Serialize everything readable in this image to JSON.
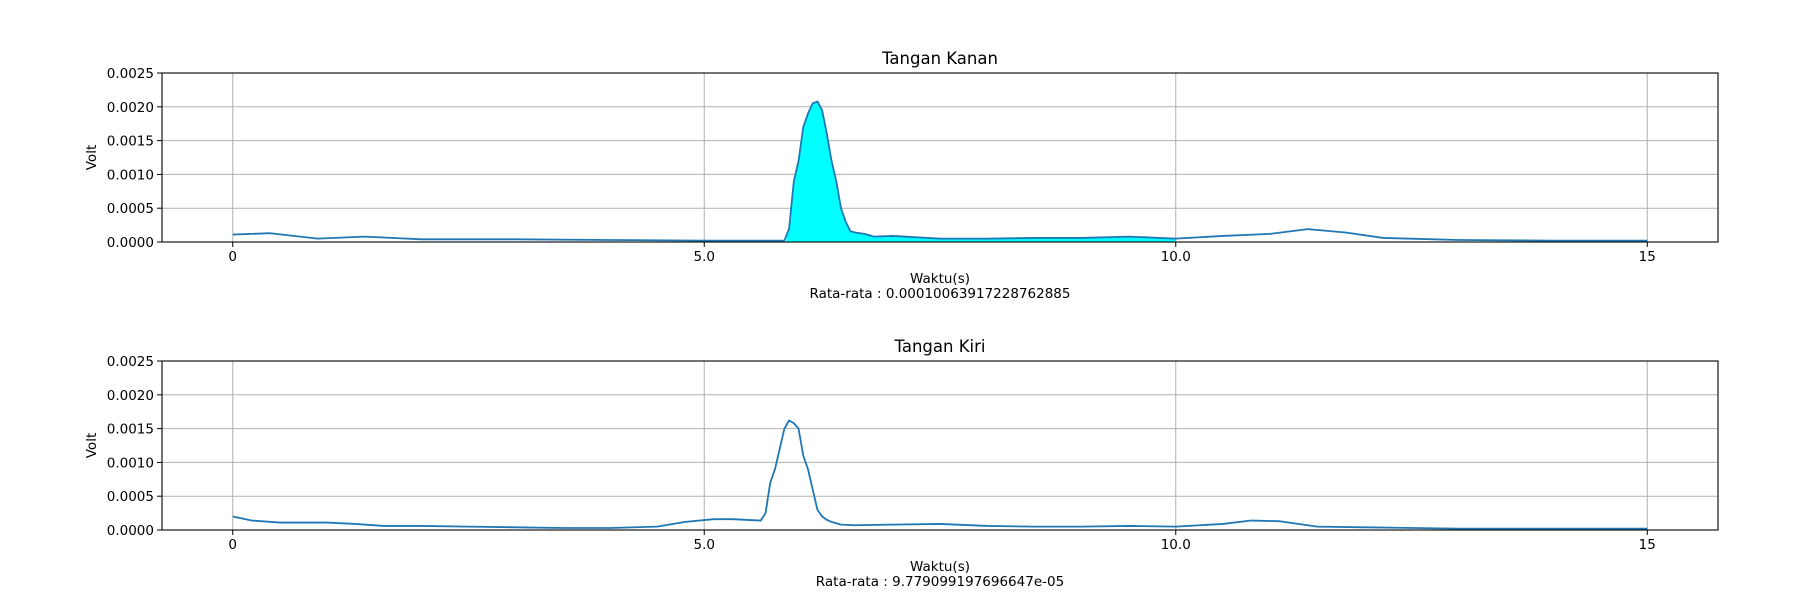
{
  "chart_data": [
    {
      "type": "line",
      "title": "Tangan Kanan",
      "xlabel": "Waktu(s)",
      "ylabel": "Volt",
      "annotation": "Rata-rata : 0.00010063917228762885",
      "xlim": [
        -0.75,
        15.75
      ],
      "ylim": [
        0,
        0.0025
      ],
      "xticks": [
        0,
        5,
        10,
        15
      ],
      "xtick_labels": [
        "0",
        "5.0",
        "10.0",
        "15"
      ],
      "yticks": [
        0,
        0.0005,
        0.001,
        0.0015,
        0.002,
        0.0025
      ],
      "ytick_labels": [
        "0.0000",
        "0.0005",
        "0.0010",
        "0.0015",
        "0.0020",
        "0.0025"
      ],
      "grid": true,
      "line_color": "#1f77b4",
      "fill_color": "#00ffff",
      "fill_range": [
        5.87,
        10.0
      ],
      "series": [
        {
          "x": [
            0,
            0.4,
            0.9,
            1.4,
            2.0,
            3.0,
            4.0,
            5.0,
            5.5,
            5.85,
            5.9,
            5.95,
            6.0,
            6.05,
            6.1,
            6.15,
            6.2,
            6.25,
            6.3,
            6.35,
            6.4,
            6.45,
            6.5,
            6.55,
            6.6,
            6.7,
            6.8,
            7.0,
            7.5,
            8.0,
            8.5,
            9.0,
            9.5,
            10.0,
            10.5,
            11.0,
            11.4,
            11.8,
            12.2,
            13.0,
            14.0,
            15.0
          ],
          "y": [
            0.00011,
            0.00013,
            5e-05,
            8e-05,
            4e-05,
            4e-05,
            3e-05,
            2e-05,
            2e-05,
            2e-05,
            0.0002,
            0.0009,
            0.0012,
            0.0017,
            0.0019,
            0.00205,
            0.00208,
            0.00195,
            0.0016,
            0.0012,
            0.0009,
            0.0005,
            0.0003,
            0.00016,
            0.00014,
            0.00012,
            8e-05,
            9e-05,
            5e-05,
            5e-05,
            6e-05,
            6e-05,
            8e-05,
            5e-05,
            9e-05,
            0.00012,
            0.00019,
            0.00014,
            6e-05,
            3e-05,
            2e-05,
            2e-05
          ]
        }
      ]
    },
    {
      "type": "line",
      "title": "Tangan Kiri",
      "xlabel": "Waktu(s)",
      "ylabel": "Volt",
      "annotation": "Rata-rata : 9.779099197696647e-05",
      "xlim": [
        -0.75,
        15.75
      ],
      "ylim": [
        0,
        0.0025
      ],
      "xticks": [
        0,
        5,
        10,
        15
      ],
      "xtick_labels": [
        "0",
        "5.0",
        "10.0",
        "15"
      ],
      "yticks": [
        0,
        0.0005,
        0.001,
        0.0015,
        0.002,
        0.0025
      ],
      "ytick_labels": [
        "0.0000",
        "0.0005",
        "0.0010",
        "0.0015",
        "0.0020",
        "0.0025"
      ],
      "grid": true,
      "line_color": "#1f77b4",
      "series": [
        {
          "x": [
            0,
            0.2,
            0.5,
            1.0,
            1.3,
            1.6,
            2.0,
            2.5,
            3.0,
            3.5,
            4.0,
            4.5,
            4.8,
            5.1,
            5.3,
            5.6,
            5.65,
            5.7,
            5.75,
            5.8,
            5.85,
            5.9,
            5.95,
            6.0,
            6.05,
            6.1,
            6.15,
            6.2,
            6.25,
            6.3,
            6.35,
            6.4,
            6.45,
            6.6,
            7.0,
            7.5,
            8.0,
            8.5,
            9.0,
            9.5,
            10.0,
            10.5,
            10.8,
            11.1,
            11.5,
            12.0,
            13.0,
            14.0,
            15.0
          ],
          "y": [
            0.0002,
            0.00014,
            0.00011,
            0.00011,
            9e-05,
            6e-05,
            6e-05,
            5e-05,
            4e-05,
            3e-05,
            3e-05,
            5e-05,
            0.00012,
            0.00016,
            0.00016,
            0.00014,
            0.00025,
            0.0007,
            0.0009,
            0.0012,
            0.0015,
            0.00162,
            0.00158,
            0.0015,
            0.0011,
            0.0009,
            0.0006,
            0.0003,
            0.0002,
            0.00015,
            0.00012,
            0.0001,
            8e-05,
            7e-05,
            8e-05,
            9e-05,
            6e-05,
            5e-05,
            5e-05,
            6e-05,
            5e-05,
            9e-05,
            0.00014,
            0.00013,
            5e-05,
            4e-05,
            2e-05,
            2e-05,
            2e-05
          ]
        }
      ]
    }
  ]
}
